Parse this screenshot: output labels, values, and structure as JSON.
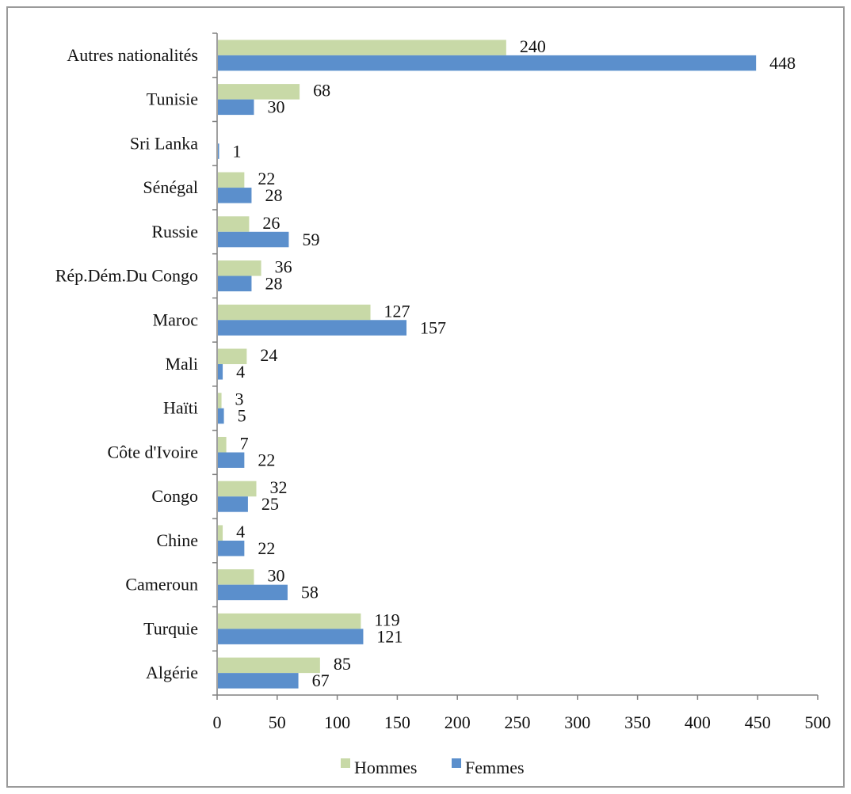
{
  "chart_data": {
    "type": "bar",
    "orientation": "horizontal",
    "categories": [
      "Autres nationalités",
      "Tunisie",
      "Sri Lanka",
      "Sénégal",
      "Russie",
      "Rép.Dém.Du Congo",
      "Maroc",
      "Mali",
      "Haïti",
      "Côte d'Ivoire",
      "Congo",
      "Chine",
      "Cameroun",
      "Turquie",
      "Algérie"
    ],
    "series": [
      {
        "name": "Hommes",
        "color": "#c8d9a7",
        "values": [
          240,
          68,
          null,
          22,
          26,
          36,
          127,
          24,
          3,
          7,
          32,
          4,
          30,
          119,
          85
        ]
      },
      {
        "name": "Femmes",
        "color": "#5b8fcc",
        "values": [
          448,
          30,
          1,
          28,
          59,
          28,
          157,
          4,
          5,
          22,
          25,
          22,
          58,
          121,
          67
        ]
      }
    ],
    "xlim": [
      0,
      500
    ],
    "xticks": [
      0,
      50,
      100,
      150,
      200,
      250,
      300,
      350,
      400,
      450,
      500
    ],
    "grid": false,
    "legend": "bottom"
  }
}
